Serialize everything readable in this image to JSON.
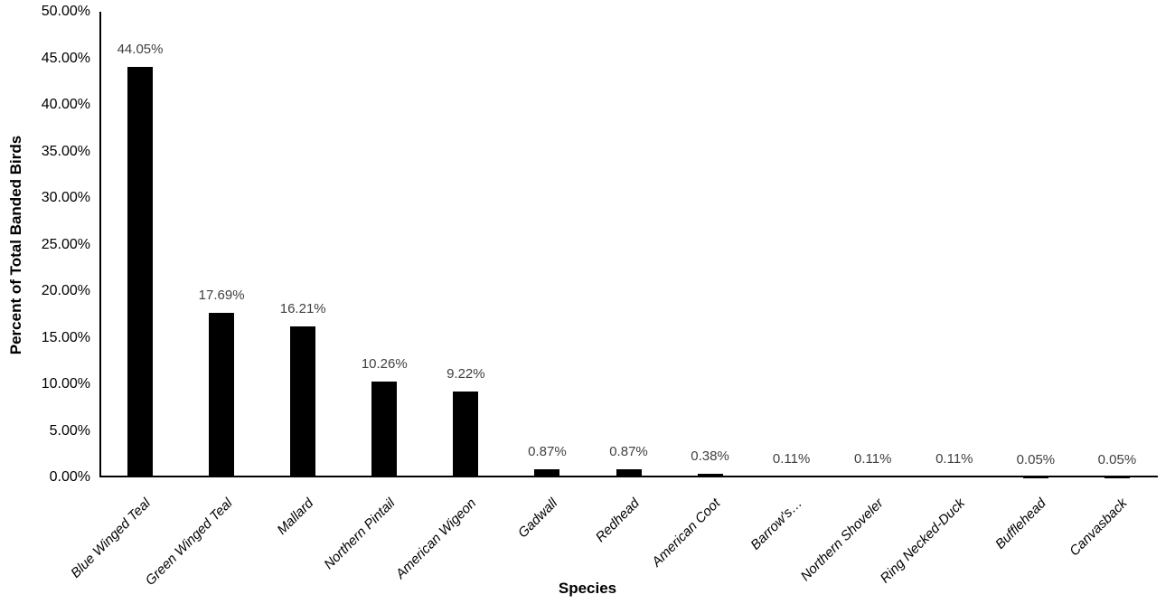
{
  "chart_data": {
    "type": "bar",
    "title": "",
    "xlabel": "Species",
    "ylabel": "Percent of Total Banded Birds",
    "categories": [
      "Blue Winged Teal",
      "Green Winged Teal",
      "Mallard",
      "Northern Pintail",
      "American Wigeon",
      "Gadwall",
      "Redhead",
      "American Coot",
      "Barrow's…",
      "Northern Shoveler",
      "Ring Necked-Duck",
      "Bufflehead",
      "Canvasback"
    ],
    "values": [
      44.05,
      17.69,
      16.21,
      10.26,
      9.22,
      0.87,
      0.87,
      0.38,
      0.11,
      0.11,
      0.11,
      0.05,
      0.05
    ],
    "value_labels": [
      "44.05%",
      "17.69%",
      "16.21%",
      "10.26%",
      "9.22%",
      "0.87%",
      "0.87%",
      "0.38%",
      "0.11%",
      "0.11%",
      "0.11%",
      "0.05%",
      "0.05%"
    ],
    "y_tick_labels": [
      "0.00%",
      "5.00%",
      "10.00%",
      "15.00%",
      "20.00%",
      "25.00%",
      "30.00%",
      "35.00%",
      "40.00%",
      "45.00%",
      "50.00%"
    ],
    "ylim": [
      0,
      50
    ],
    "y_tick_step": 5,
    "grid": false,
    "legend": "none",
    "bar_color": "#000000",
    "value_label_color": "#404040",
    "axis_color": "#000000",
    "background": "#ffffff"
  }
}
